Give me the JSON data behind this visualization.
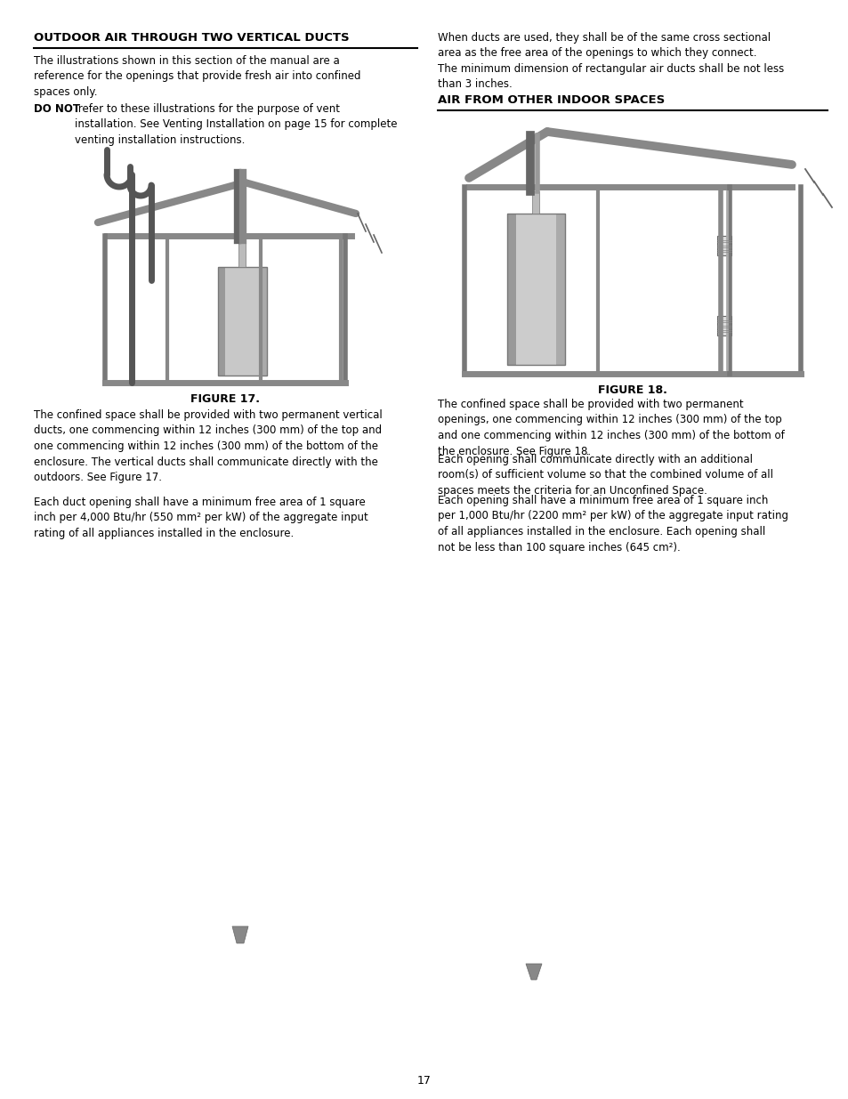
{
  "page_number": "17",
  "background_color": "#ffffff",
  "text_color": "#000000",
  "left_heading": "OUTDOOR AIR THROUGH TWO VERTICAL DUCTS",
  "left_para1": "The illustrations shown in this section of the manual are a\nreference for the openings that provide fresh air into confined\nspaces only.",
  "left_para2_bold": "DO NOT",
  "left_para2_rest": " refer to these illustrations for the purpose of vent\ninstallation. See Venting Installation on page 15 for complete\nventing installation instructions.",
  "left_fig_label": "FIGURE 17.",
  "left_para3": "The confined space shall be provided with two permanent vertical\nducts, one commencing within 12 inches (300 mm) of the top and\none commencing within 12 inches (300 mm) of the bottom of the\nenclosure. The vertical ducts shall communicate directly with the\noutdoors. See Figure 17.",
  "left_para4": "Each duct opening shall have a minimum free area of 1 square\ninch per 4,000 Btu/hr (550 mm² per kW) of the aggregate input\nrating of all appliances installed in the enclosure.",
  "right_para1": "When ducts are used, they shall be of the same cross sectional\narea as the free area of the openings to which they connect.\nThe minimum dimension of rectangular air ducts shall be not less\nthan 3 inches.",
  "right_heading": "AIR FROM OTHER INDOOR SPACES",
  "right_fig_label": "FIGURE 18.",
  "right_para2": "The confined space shall be provided with two permanent\nopenings, one commencing within 12 inches (300 mm) of the top\nand one commencing within 12 inches (300 mm) of the bottom of\nthe enclosure. See Figure 18.",
  "right_para3": "Each opening shall communicate directly with an additional\nroom(s) of sufficient volume so that the combined volume of all\nspaces meets the criteria for an Unconfined Space.",
  "right_para4": "Each opening shall have a minimum free area of 1 square inch\nper 1,000 Btu/hr (2200 mm² per kW) of the aggregate input rating\nof all appliances installed in the enclosure. Each opening shall\nnot be less than 100 square inches (645 cm²).",
  "font_size_heading": 9.5,
  "font_size_body": 8.5
}
